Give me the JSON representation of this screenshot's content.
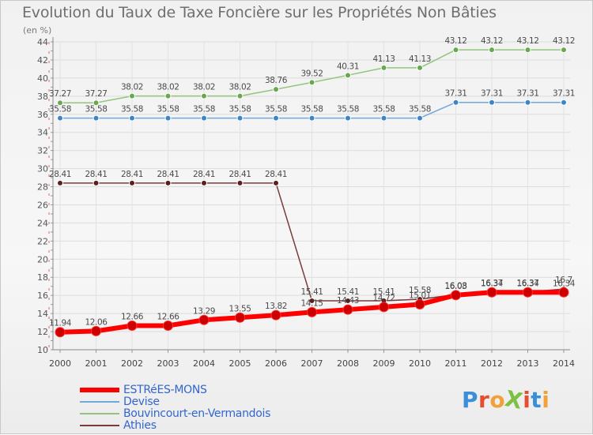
{
  "title": "Evolution du Taux de Taxe Foncière sur les Propriétés Non Bâties",
  "unit_label": "(en %)",
  "brand": "ProXiti",
  "brand_colors": [
    "#3a8fd8",
    "#e84c2f",
    "#f2a03a",
    "#7cc142",
    "#e84c2f",
    "#3a8fd8",
    "#f2a03a"
  ],
  "chart_data": {
    "type": "line",
    "title": "Evolution du Taux de Taxe Foncière sur les Propriétés Non Bâties",
    "ylabel": "(en %)",
    "xlabel": "",
    "ylim": [
      10,
      44
    ],
    "yticks": [
      10,
      12,
      14,
      16,
      18,
      20,
      22,
      24,
      26,
      28,
      30,
      32,
      34,
      36,
      38,
      40,
      42,
      44
    ],
    "x": [
      "2000",
      "2001",
      "2002",
      "2003",
      "2004",
      "2005",
      "2006",
      "2007",
      "2008",
      "2009",
      "2010",
      "2011",
      "2012",
      "2013",
      "2014"
    ],
    "grid": true,
    "legend_position": "bottom-left",
    "series": [
      {
        "name": "ESTRéES-MONS",
        "color": "#ff0000",
        "marker_color": "#cc0000",
        "values": [
          11.94,
          12.06,
          12.66,
          12.66,
          13.29,
          13.55,
          13.82,
          14.15,
          14.43,
          14.72,
          15.01,
          16.03,
          16.34,
          16.34,
          16.34
        ],
        "labels": [
          "11.94",
          "12.06",
          "12.66",
          "12.66",
          "13.29",
          "13.55",
          "13.82",
          "14.15",
          "14.43",
          "14.72",
          "15.01",
          "16.03",
          "16.34",
          "16.34",
          "16.34"
        ]
      },
      {
        "name": "Devise",
        "color": "#6fa8dc",
        "marker_color": "#3d85c6",
        "values": [
          35.58,
          35.58,
          35.58,
          35.58,
          35.58,
          35.58,
          35.58,
          35.58,
          35.58,
          35.58,
          35.58,
          37.31,
          37.31,
          37.31,
          37.31
        ],
        "labels": [
          "35.58",
          "35.58",
          "35.58",
          "35.58",
          "35.58",
          "35.58",
          "35.58",
          "35.58",
          "35.58",
          "35.58",
          "35.58",
          "37.31",
          "37.31",
          "37.31",
          "37.31"
        ]
      },
      {
        "name": "Bouvincourt-en-Vermandois",
        "color": "#93c47d",
        "marker_color": "#6aa84f",
        "values": [
          37.27,
          37.27,
          38.02,
          38.02,
          38.02,
          38.02,
          38.76,
          39.52,
          40.31,
          41.13,
          41.13,
          43.12,
          43.12,
          43.12,
          43.12
        ],
        "labels": [
          "37.27",
          "37.27",
          "38.02",
          "38.02",
          "38.02",
          "38.02",
          "38.76",
          "39.52",
          "40.31",
          "41.13",
          "41.13",
          "43.12",
          "43.12",
          "43.12",
          "43.12"
        ]
      },
      {
        "name": "Athies",
        "color": "#7a3b3b",
        "marker_color": "#5b1f1f",
        "values": [
          28.41,
          28.41,
          28.41,
          28.41,
          28.41,
          28.41,
          28.41,
          15.41,
          15.41,
          15.41,
          15.58,
          16.08,
          16.37,
          16.37,
          16.7
        ],
        "labels": [
          "28.41",
          "28.41",
          "28.41",
          "28.41",
          "28.41",
          "28.41",
          "28.41",
          "15.41",
          "15.41",
          "15.41",
          "15.58",
          "16.08",
          "16.37",
          "16.37",
          "16.7"
        ]
      }
    ]
  }
}
